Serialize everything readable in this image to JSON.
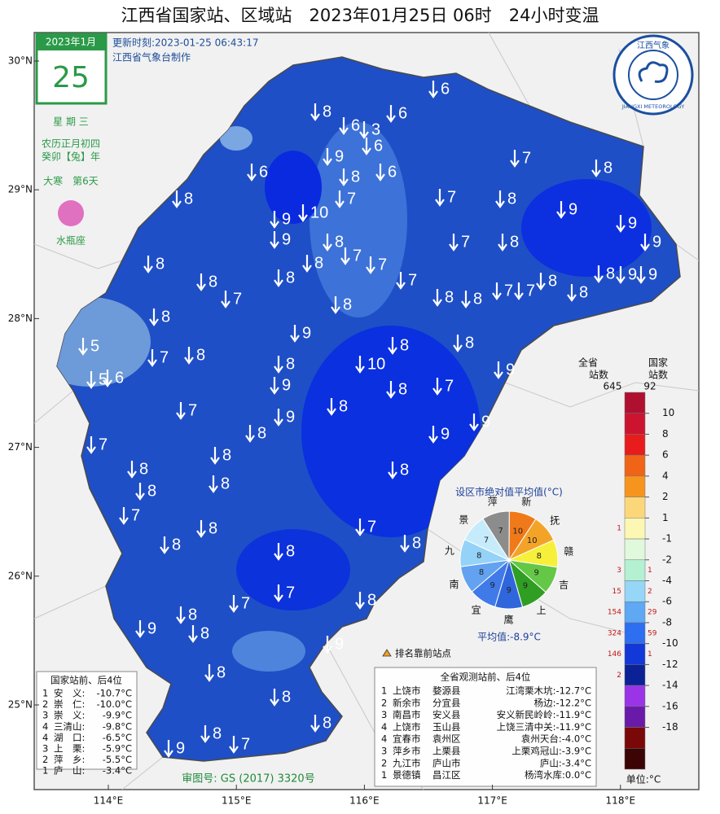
{
  "header": {
    "title": "江西省国家站、区域站　2023年01月25日 06时　24小时变温",
    "update_time": "更新时刻:2023-01-25 06:43:17",
    "maker": "江西省气象台制作"
  },
  "calendar": {
    "month": "2023年1月",
    "day": "25",
    "weekday": "星 期 三",
    "lunar": "农历正月初四",
    "year_name": "癸卯【兔】年",
    "solar_term": "大寒　第6天",
    "zodiac": "水瓶座"
  },
  "logo": {
    "name": "江西气象",
    "english": "JIANGXI METEOROLOGY"
  },
  "axes": {
    "lat_ticks": [
      {
        "value": 30,
        "label": "30°N"
      },
      {
        "value": 29,
        "label": "29°N"
      },
      {
        "value": 28,
        "label": "28°N"
      },
      {
        "value": 27,
        "label": "27°N"
      },
      {
        "value": 26,
        "label": "26°N"
      },
      {
        "value": 25,
        "label": "25°N"
      }
    ],
    "lon_ticks": [
      {
        "value": 114,
        "label": "114°E"
      },
      {
        "value": 115,
        "label": "115°E"
      },
      {
        "value": 116,
        "label": "116°E"
      },
      {
        "value": 117,
        "label": "117°E"
      },
      {
        "value": 118,
        "label": "118°E"
      }
    ]
  },
  "stations": [
    6,
    8,
    6,
    6,
    3,
    6,
    7,
    9,
    6,
    8,
    6,
    8,
    8,
    7,
    10,
    7,
    8,
    9,
    9,
    9,
    9,
    8,
    7,
    8,
    9,
    8,
    8,
    8,
    7,
    7,
    7,
    8,
    8,
    8,
    7,
    7,
    8,
    8,
    8,
    9,
    9,
    7,
    8,
    8,
    9,
    8,
    8,
    5,
    7,
    8,
    8,
    10,
    5,
    6,
    9,
    8,
    7,
    9,
    7,
    8,
    9,
    9,
    8,
    9,
    7,
    8,
    8,
    8,
    8,
    8,
    7,
    8,
    7,
    8,
    8,
    8,
    7,
    7,
    8,
    8,
    9,
    8,
    9,
    8,
    8,
    8,
    8,
    7,
    9
  ],
  "pie": {
    "title": "设区市绝对值平均值(°C)",
    "cities": [
      "萍",
      "新",
      "抚",
      "赣",
      "吉",
      "上",
      "鹰",
      "宜",
      "南",
      "九",
      "景"
    ],
    "values": [
      7,
      10,
      10,
      8,
      9,
      9,
      9,
      9,
      8,
      8,
      7
    ],
    "colors": [
      "#8c8c8c",
      "#f07a1a",
      "#f3a428",
      "#f6f03a",
      "#64c846",
      "#2f9e22",
      "#2f66dc",
      "#3f7ae8",
      "#62a2f0",
      "#94d2f8",
      "#c6ecfc"
    ],
    "average": "平均值:-8.9°C"
  },
  "legend": {
    "province_header": [
      "全省",
      "站数"
    ],
    "province_total": "645",
    "national_header": [
      "国家",
      "站数"
    ],
    "national_total": "92",
    "ticks": [
      "10",
      "8",
      "6",
      "4",
      "2",
      "1",
      "-1",
      "-2",
      "-4",
      "-6",
      "-8",
      "-10",
      "-12",
      "-14",
      "-16",
      "-18"
    ],
    "colors": [
      "#b01030",
      "#cc1430",
      "#e81c1c",
      "#f06418",
      "#f7941d",
      "#fcd77a",
      "#fdf7b4",
      "#e0f8dc",
      "#b4f0d2",
      "#96d6f6",
      "#5ea8f4",
      "#2e6ef0",
      "#1238d8",
      "#0a2296",
      "#9a34e6",
      "#6a1aa8",
      "#7a0808",
      "#3c0404"
    ],
    "province_counts": [
      null,
      null,
      null,
      null,
      null,
      null,
      "1",
      null,
      "3",
      "15",
      "154",
      "324",
      "146",
      "2",
      null,
      null,
      null,
      null
    ],
    "national_counts": [
      null,
      null,
      null,
      null,
      null,
      null,
      null,
      null,
      "1",
      "2",
      "29",
      "59",
      "1",
      null,
      null,
      null,
      null,
      null
    ],
    "unit": "单位:°C"
  },
  "national_table": {
    "title": "国家站前、后4位",
    "rows": [
      [
        "1",
        "安　义:",
        "-10.7°C"
      ],
      [
        "2",
        "崇　仁:",
        "-10.0°C"
      ],
      [
        "3",
        "崇　义:",
        "-9.9°C"
      ],
      [
        "4",
        "三清山:",
        "-9.8°C"
      ],
      [
        "4",
        "湖　口:",
        "-6.5°C"
      ],
      [
        "3",
        "上　栗:",
        "-5.9°C"
      ],
      [
        "2",
        "萍　乡:",
        "-5.5°C"
      ],
      [
        "1",
        "庐　山:",
        "-3.4°C"
      ]
    ]
  },
  "province_table": {
    "title": "全省观测站前、后4位",
    "rows": [
      [
        "1",
        "上饶市",
        "婺源县",
        "江湾栗木坑:-12.7°C"
      ],
      [
        "2",
        "新余市",
        "分宜县",
        "杨边:-12.2°C"
      ],
      [
        "3",
        "南昌市",
        "安义县",
        "安义新民岭岭:-11.9°C"
      ],
      [
        "4",
        "上饶市",
        "玉山县",
        "上饶三清中关:-11.9°C"
      ],
      [
        "4",
        "宜春市",
        "袁州区",
        "袁州天台:-4.0°C"
      ],
      [
        "3",
        "萍乡市",
        "上栗县",
        "上栗鸡冠山:-3.9°C"
      ],
      [
        "2",
        "九江市",
        "庐山市",
        "庐山:-3.4°C"
      ],
      [
        "1",
        "景德镇",
        "昌江区",
        "杨湾水库:0.0°C"
      ]
    ]
  },
  "top_station_note": "排名靠前站点",
  "map_review_no": "审图号: GS (2017) 3320号"
}
